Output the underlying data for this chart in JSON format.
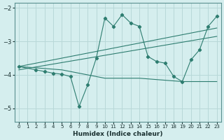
{
  "background_color": "#d5eeee",
  "grid_color": "#b8d8d8",
  "line_color": "#2e7d70",
  "xlabel": "Humidex (Indice chaleur)",
  "xlim": [
    -0.5,
    23.5
  ],
  "ylim": [
    -5.4,
    -1.85
  ],
  "yticks": [
    -5,
    -4,
    -3,
    -2
  ],
  "xticks": [
    0,
    1,
    2,
    3,
    4,
    5,
    6,
    7,
    8,
    9,
    10,
    11,
    12,
    13,
    14,
    15,
    16,
    17,
    18,
    19,
    20,
    21,
    22,
    23
  ],
  "series": [
    {
      "x": [
        0,
        23
      ],
      "y": [
        -3.75,
        -2.6
      ],
      "marker": false
    },
    {
      "x": [
        0,
        23
      ],
      "y": [
        -3.85,
        -2.85
      ],
      "marker": false
    },
    {
      "x": [
        0,
        5,
        10,
        14,
        19,
        23
      ],
      "y": [
        -3.75,
        -3.85,
        -4.1,
        -4.1,
        -4.2,
        -4.2
      ],
      "marker": false
    },
    {
      "x": [
        0,
        2,
        3,
        4,
        5,
        6,
        7,
        8,
        9,
        10,
        11,
        12,
        13,
        14,
        15,
        16,
        17,
        18,
        19,
        20,
        21,
        22,
        23
      ],
      "y": [
        -3.75,
        -3.85,
        -3.9,
        -3.95,
        -3.98,
        -4.05,
        -4.95,
        -4.3,
        -3.5,
        -2.3,
        -2.55,
        -2.2,
        -2.45,
        -2.55,
        -3.45,
        -3.6,
        -3.65,
        -4.05,
        -4.2,
        -3.55,
        -3.25,
        -2.55,
        -2.25
      ],
      "marker": true
    }
  ]
}
